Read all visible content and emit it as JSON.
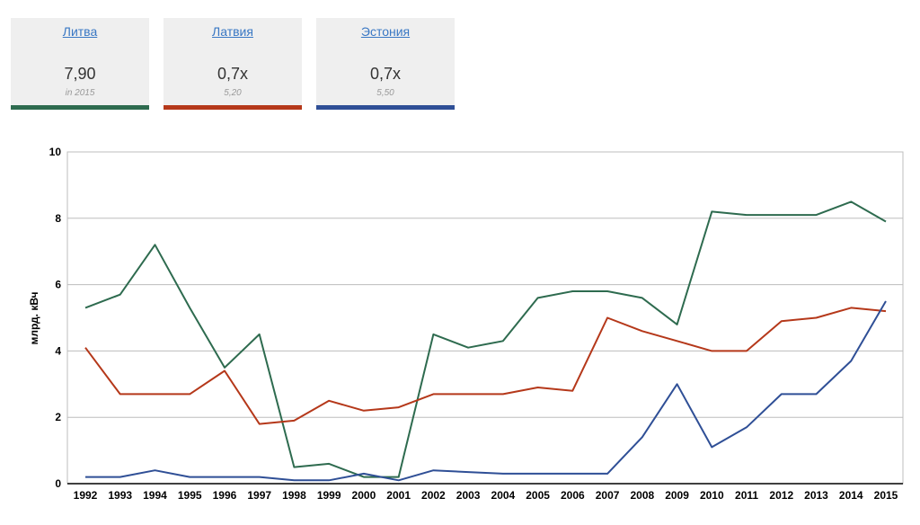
{
  "cards": [
    {
      "title": "Литва",
      "value": "7,90",
      "note": "in 2015",
      "color": "#2e6b4f"
    },
    {
      "title": "Латвия",
      "value": "0,7x",
      "note": "5,20",
      "color": "#b5381a"
    },
    {
      "title": "Эстония",
      "value": "0,7x",
      "note": "5,50",
      "color": "#2f4f96"
    }
  ],
  "chart_data": {
    "type": "line",
    "ylabel": "млрд. кВч",
    "xlabel": "",
    "ylim": [
      0,
      10
    ],
    "yticks": [
      "0",
      "2",
      "4",
      "6",
      "8",
      "10"
    ],
    "grid": true,
    "x": [
      "1992",
      "1993",
      "1994",
      "1995",
      "1996",
      "1997",
      "1998",
      "1999",
      "2000",
      "2001",
      "2002",
      "2003",
      "2004",
      "2005",
      "2006",
      "2007",
      "2008",
      "2009",
      "2010",
      "2011",
      "2012",
      "2013",
      "2014",
      "2015"
    ],
    "series": [
      {
        "name": "Литва",
        "color": "#2e6b4f",
        "values": [
          5.3,
          5.7,
          7.2,
          5.3,
          3.5,
          4.5,
          0.5,
          0.6,
          0.2,
          0.2,
          4.5,
          4.1,
          4.3,
          5.6,
          5.8,
          5.8,
          5.6,
          4.8,
          8.2,
          8.1,
          8.1,
          8.1,
          8.5,
          7.9
        ]
      },
      {
        "name": "Латвия",
        "color": "#b5381a",
        "values": [
          4.1,
          2.7,
          2.7,
          2.7,
          3.4,
          1.8,
          1.9,
          2.5,
          2.2,
          2.3,
          2.7,
          2.7,
          2.7,
          2.9,
          2.8,
          5.0,
          4.6,
          4.3,
          4.0,
          4.0,
          4.9,
          5.0,
          5.3,
          5.2
        ]
      },
      {
        "name": "Эстония",
        "color": "#2f4f96",
        "values": [
          0.2,
          0.2,
          0.4,
          0.2,
          0.2,
          0.2,
          0.1,
          0.1,
          0.3,
          0.1,
          0.4,
          0.35,
          0.3,
          0.3,
          0.3,
          0.3,
          1.4,
          3.0,
          1.1,
          1.7,
          2.7,
          2.7,
          3.7,
          5.5
        ]
      }
    ]
  }
}
